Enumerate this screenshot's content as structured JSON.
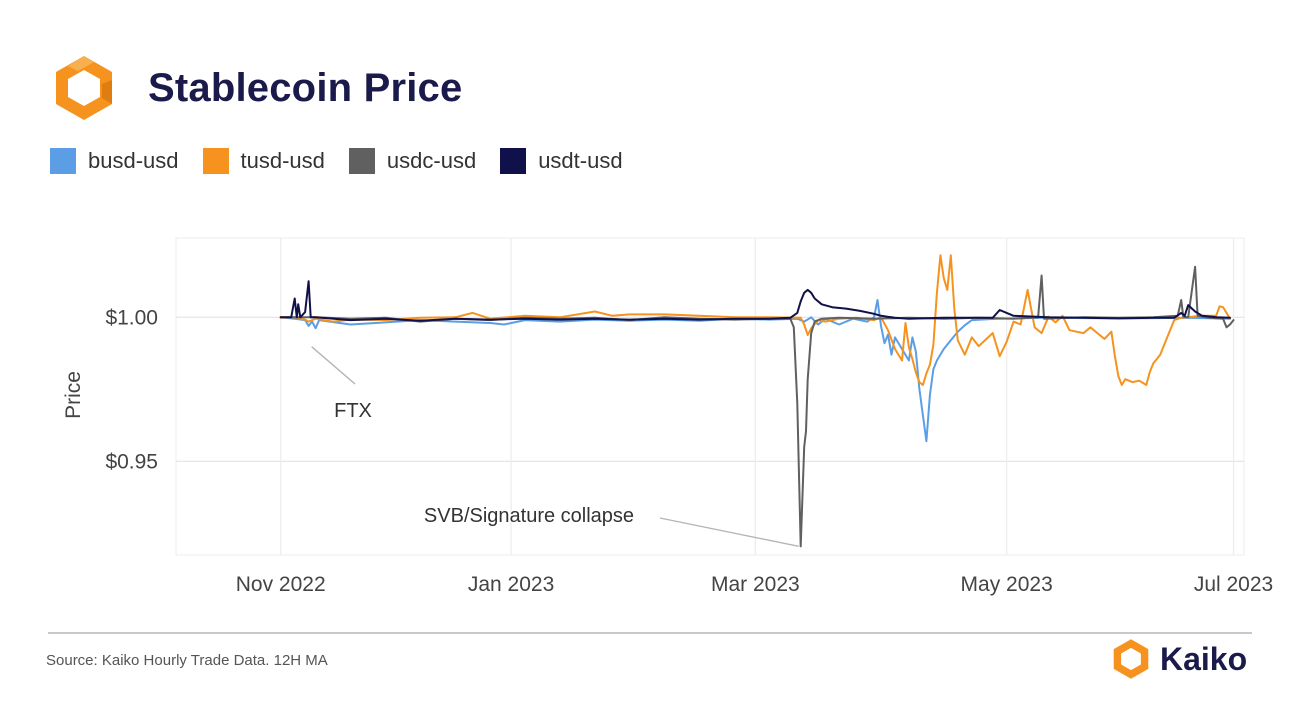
{
  "header": {
    "title": "Stablecoin Price"
  },
  "footer": {
    "source": "Source: Kaiko Hourly Trade Data. 12H MA",
    "brand": "Kaiko"
  },
  "colors": {
    "busd": "#5b9ee6",
    "tusd": "#f5931e",
    "usdc": "#606060",
    "usdt": "#10114a",
    "brand_orange": "#f5931e",
    "title": "#1a1b4b"
  },
  "chart_data": {
    "type": "line",
    "title": "Stablecoin Price",
    "xlabel": "",
    "ylabel": "Price",
    "ylim": [
      0.9175,
      1.0275
    ],
    "y_ticks": [
      {
        "value": 1.0,
        "label": "$1.00"
      },
      {
        "value": 0.95,
        "label": "$0.95"
      }
    ],
    "x_range_days": [
      -30,
      276
    ],
    "x_ticks": [
      {
        "day": 0,
        "label": "Nov 2022"
      },
      {
        "day": 66,
        "label": "Jan 2023"
      },
      {
        "day": 136,
        "label": "Mar 2023"
      },
      {
        "day": 208,
        "label": "May 2023"
      },
      {
        "day": 273,
        "label": "Jul 2023"
      }
    ],
    "legend": [
      "busd-usd",
      "tusd-usd",
      "usdc-usd",
      "usdt-usd"
    ],
    "annotations": [
      {
        "text": "FTX",
        "day": 6,
        "value": 0.9995
      },
      {
        "text": "SVB/Signature collapse",
        "day": 149,
        "value": 0.9205
      }
    ],
    "series": [
      {
        "name": "busd-usd",
        "color_key": "busd",
        "points": [
          [
            0,
            1.0
          ],
          [
            4,
            0.9995
          ],
          [
            7,
            0.999
          ],
          [
            8,
            0.997
          ],
          [
            9,
            0.9985
          ],
          [
            10,
            0.9962
          ],
          [
            11,
            0.999
          ],
          [
            14,
            0.9985
          ],
          [
            20,
            0.9975
          ],
          [
            30,
            0.9982
          ],
          [
            40,
            0.999
          ],
          [
            50,
            0.9985
          ],
          [
            60,
            0.998
          ],
          [
            64,
            0.9975
          ],
          [
            70,
            0.999
          ],
          [
            80,
            0.9985
          ],
          [
            90,
            0.9992
          ],
          [
            100,
            0.9988
          ],
          [
            110,
            0.9992
          ],
          [
            120,
            0.9988
          ],
          [
            130,
            0.9995
          ],
          [
            140,
            0.9992
          ],
          [
            148,
            0.9995
          ],
          [
            150,
            0.9985
          ],
          [
            152,
            1.0
          ],
          [
            154,
            0.9975
          ],
          [
            156,
            0.9995
          ],
          [
            160,
            0.9975
          ],
          [
            164,
            0.9995
          ],
          [
            168,
            0.9985
          ],
          [
            170,
            1.0
          ],
          [
            171,
            1.006
          ],
          [
            172,
            0.997
          ],
          [
            173,
            0.991
          ],
          [
            174,
            0.994
          ],
          [
            175,
            0.987
          ],
          [
            176,
            0.993
          ],
          [
            178,
            0.989
          ],
          [
            180,
            0.985
          ],
          [
            181,
            0.993
          ],
          [
            182,
            0.988
          ],
          [
            183,
            0.975
          ],
          [
            184,
            0.966
          ],
          [
            185,
            0.957
          ],
          [
            186,
            0.973
          ],
          [
            187,
            0.982
          ],
          [
            188,
            0.985
          ],
          [
            190,
            0.989
          ],
          [
            192,
            0.992
          ],
          [
            194,
            0.995
          ],
          [
            196,
            0.9972
          ],
          [
            198,
            0.999
          ],
          [
            205,
            0.9995
          ],
          [
            220,
            0.9998
          ],
          [
            240,
            0.9996
          ],
          [
            260,
            0.9998
          ],
          [
            272,
            0.9995
          ]
        ]
      },
      {
        "name": "tusd-usd",
        "color_key": "tusd",
        "points": [
          [
            0,
            0.9998
          ],
          [
            4,
            1.0
          ],
          [
            7,
            0.9992
          ],
          [
            8,
            0.9985
          ],
          [
            10,
            0.9995
          ],
          [
            15,
            0.9985
          ],
          [
            20,
            0.9992
          ],
          [
            30,
            0.999
          ],
          [
            40,
            0.9998
          ],
          [
            50,
            1.0
          ],
          [
            55,
            1.0015
          ],
          [
            60,
            0.9995
          ],
          [
            70,
            1.0005
          ],
          [
            80,
            1.0
          ],
          [
            90,
            1.002
          ],
          [
            95,
            1.0005
          ],
          [
            100,
            1.001
          ],
          [
            110,
            1.001
          ],
          [
            120,
            1.0005
          ],
          [
            130,
            1.0
          ],
          [
            140,
            1.0
          ],
          [
            149,
            0.9998
          ],
          [
            150,
            0.9975
          ],
          [
            151,
            0.9938
          ],
          [
            152,
            0.9962
          ],
          [
            154,
            0.999
          ],
          [
            156,
            0.9985
          ],
          [
            160,
            0.9995
          ],
          [
            165,
            0.9998
          ],
          [
            170,
            0.999
          ],
          [
            172,
            1.0
          ],
          [
            174,
            0.9955
          ],
          [
            176,
            0.989
          ],
          [
            178,
            0.985
          ],
          [
            179,
            0.998
          ],
          [
            180,
            0.9895
          ],
          [
            181,
            0.9855
          ],
          [
            182,
            0.9808
          ],
          [
            183,
            0.9775
          ],
          [
            184,
            0.9765
          ],
          [
            185,
            0.9805
          ],
          [
            186,
            0.9835
          ],
          [
            187,
            0.9905
          ],
          [
            188,
            1.0085
          ],
          [
            189,
            1.0215
          ],
          [
            190,
            1.0135
          ],
          [
            191,
            1.0095
          ],
          [
            192,
            1.0215
          ],
          [
            193,
            1.003
          ],
          [
            194,
            0.992
          ],
          [
            196,
            0.987
          ],
          [
            198,
            0.993
          ],
          [
            200,
            0.99
          ],
          [
            204,
            0.9945
          ],
          [
            206,
            0.9865
          ],
          [
            208,
            0.9915
          ],
          [
            210,
            0.9985
          ],
          [
            212,
            0.9975
          ],
          [
            214,
            1.0095
          ],
          [
            216,
            0.9965
          ],
          [
            218,
            0.9945
          ],
          [
            220,
            1.0002
          ],
          [
            222,
            0.9982
          ],
          [
            224,
            1.0005
          ],
          [
            226,
            0.9955
          ],
          [
            228,
            0.995
          ],
          [
            230,
            0.9945
          ],
          [
            232,
            0.9965
          ],
          [
            234,
            0.9945
          ],
          [
            236,
            0.9925
          ],
          [
            238,
            0.995
          ],
          [
            239,
            0.9865
          ],
          [
            240,
            0.9795
          ],
          [
            241,
            0.9765
          ],
          [
            242,
            0.9785
          ],
          [
            244,
            0.9775
          ],
          [
            246,
            0.978
          ],
          [
            248,
            0.9765
          ],
          [
            249,
            0.981
          ],
          [
            250,
            0.984
          ],
          [
            252,
            0.987
          ],
          [
            254,
            0.993
          ],
          [
            256,
            0.999
          ],
          [
            258,
            0.9998
          ],
          [
            264,
            1.0005
          ],
          [
            268,
            1.0005
          ],
          [
            269,
            1.0038
          ],
          [
            270,
            1.0035
          ],
          [
            271,
            1.0015
          ],
          [
            272,
            0.9995
          ]
        ]
      },
      {
        "name": "usdc-usd",
        "color_key": "usdc",
        "points": [
          [
            0,
            1.0
          ],
          [
            10,
            1.0
          ],
          [
            20,
            0.9995
          ],
          [
            30,
            0.9998
          ],
          [
            40,
            0.9985
          ],
          [
            50,
            0.9995
          ],
          [
            60,
            0.999
          ],
          [
            70,
            0.9998
          ],
          [
            80,
            0.9995
          ],
          [
            90,
            0.9998
          ],
          [
            100,
            0.999
          ],
          [
            110,
            1.0
          ],
          [
            120,
            0.9995
          ],
          [
            130,
            0.9992
          ],
          [
            140,
            0.9995
          ],
          [
            146,
            0.9995
          ],
          [
            147,
            0.9965
          ],
          [
            148,
            0.97
          ],
          [
            149,
            0.9205
          ],
          [
            150,
            0.955
          ],
          [
            150.5,
            0.9605
          ],
          [
            151,
            0.9785
          ],
          [
            152,
            0.9945
          ],
          [
            153,
            0.9985
          ],
          [
            155,
            0.9995
          ],
          [
            160,
            0.9998
          ],
          [
            170,
            0.9995
          ],
          [
            180,
            0.9998
          ],
          [
            190,
            0.9995
          ],
          [
            200,
            0.9998
          ],
          [
            210,
            0.9995
          ],
          [
            217,
            1.0
          ],
          [
            218,
            1.0145
          ],
          [
            218.7,
            0.9995
          ],
          [
            230,
            1.0
          ],
          [
            240,
            0.9998
          ],
          [
            250,
            1.0
          ],
          [
            257,
            1.0005
          ],
          [
            258,
            1.006
          ],
          [
            258.6,
            1.0002
          ],
          [
            260,
            1.0
          ],
          [
            262,
            1.0175
          ],
          [
            262.7,
            1.0005
          ],
          [
            266,
            0.9998
          ],
          [
            270,
            0.9995
          ],
          [
            271,
            0.9965
          ],
          [
            272,
            0.9975
          ],
          [
            273,
            0.999
          ]
        ]
      },
      {
        "name": "usdt-usd",
        "color_key": "usdt",
        "points": [
          [
            0,
            1.0
          ],
          [
            3,
            1.0
          ],
          [
            4,
            1.0065
          ],
          [
            4.6,
            1.0
          ],
          [
            5,
            1.0045
          ],
          [
            5.6,
            1.0
          ],
          [
            7,
            1.0018
          ],
          [
            8,
            1.0125
          ],
          [
            8.6,
            1.0
          ],
          [
            10,
            1.0
          ],
          [
            20,
            0.999
          ],
          [
            30,
            0.9995
          ],
          [
            40,
            0.9988
          ],
          [
            50,
            0.9995
          ],
          [
            60,
            0.9992
          ],
          [
            70,
            0.9995
          ],
          [
            80,
            0.9992
          ],
          [
            90,
            0.9995
          ],
          [
            100,
            0.9992
          ],
          [
            110,
            0.9995
          ],
          [
            120,
            0.9992
          ],
          [
            130,
            0.9995
          ],
          [
            140,
            0.9995
          ],
          [
            146,
            0.9998
          ],
          [
            148,
            1.0015
          ],
          [
            149,
            1.0055
          ],
          [
            150,
            1.0085
          ],
          [
            151,
            1.0095
          ],
          [
            152,
            1.0085
          ],
          [
            153,
            1.0065
          ],
          [
            155,
            1.0045
          ],
          [
            158,
            1.0035
          ],
          [
            162,
            1.003
          ],
          [
            166,
            1.0022
          ],
          [
            170,
            1.0012
          ],
          [
            172,
            1.0005
          ],
          [
            176,
            0.9998
          ],
          [
            180,
            0.9995
          ],
          [
            190,
            0.9998
          ],
          [
            200,
            0.9998
          ],
          [
            204,
            0.9998
          ],
          [
            206,
            1.0025
          ],
          [
            208,
            1.0015
          ],
          [
            210,
            1.0005
          ],
          [
            220,
            1.0
          ],
          [
            230,
            0.9998
          ],
          [
            240,
            0.9996
          ],
          [
            250,
            0.9998
          ],
          [
            256,
            0.9998
          ],
          [
            258,
            1.0015
          ],
          [
            259,
            1.0005
          ],
          [
            260,
            1.0042
          ],
          [
            262,
            1.002
          ],
          [
            264,
            1.0005
          ],
          [
            268,
            1.0
          ],
          [
            272,
            0.9998
          ]
        ]
      }
    ]
  }
}
